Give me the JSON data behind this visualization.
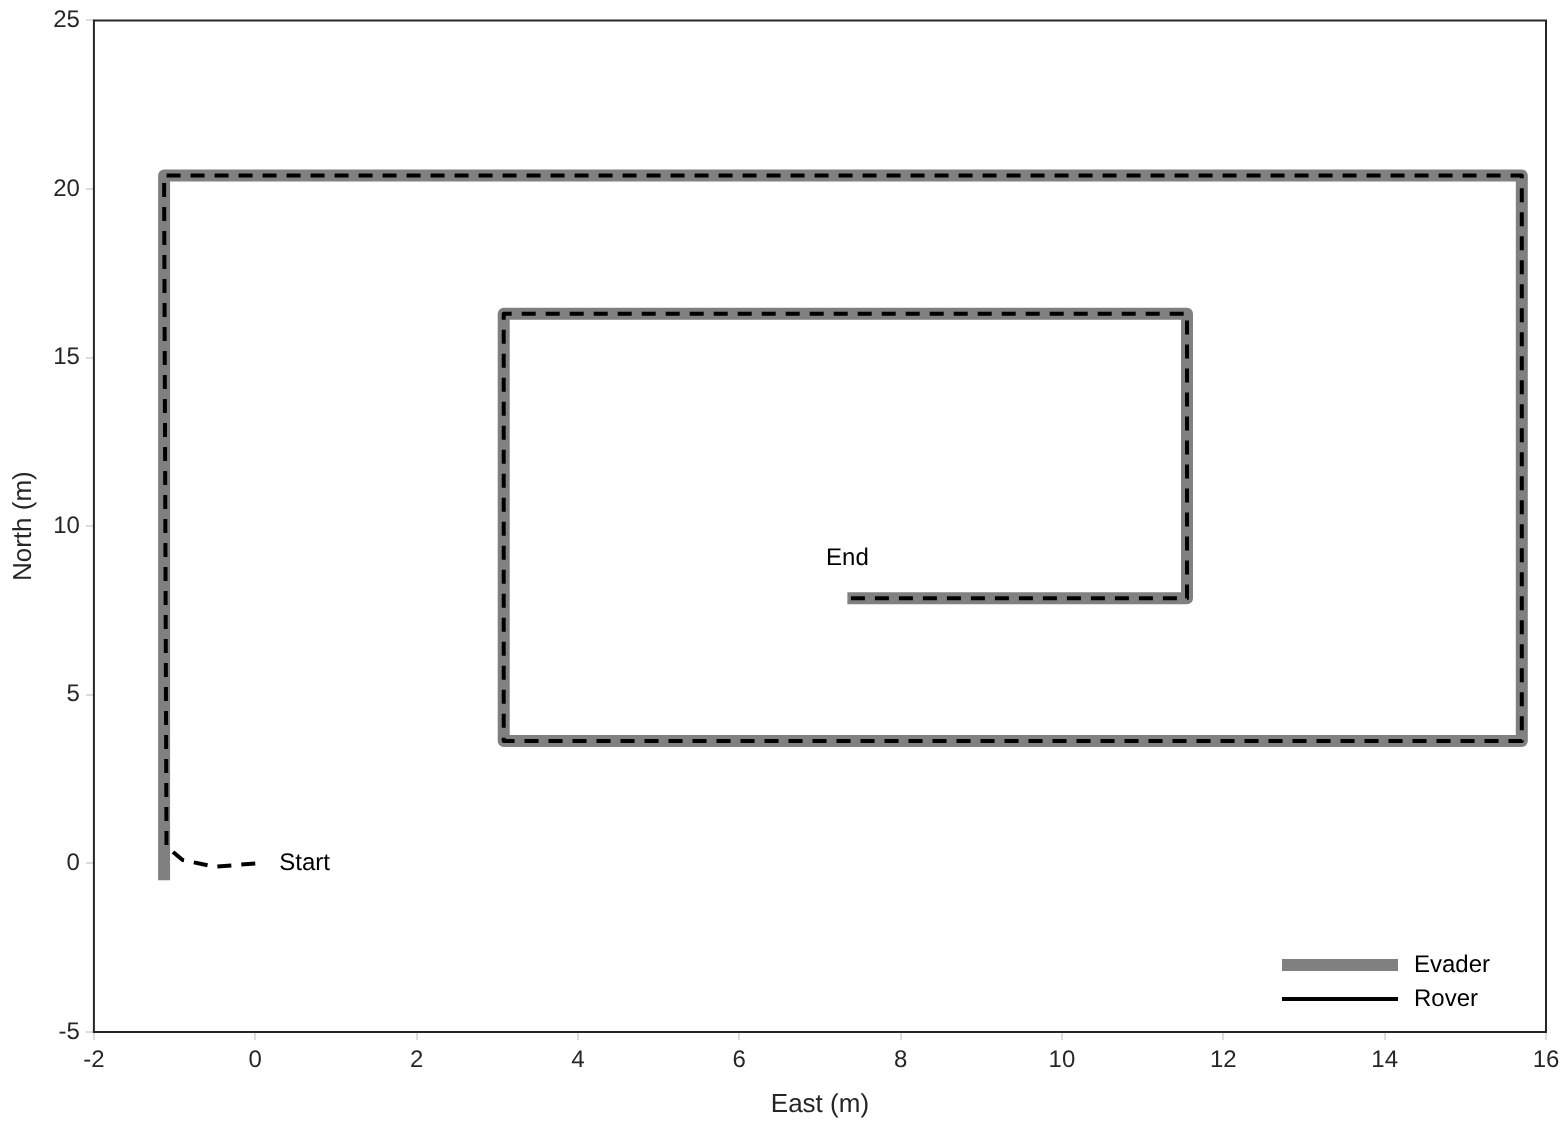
{
  "chart_data": {
    "type": "line",
    "xlabel": "East (m)",
    "ylabel": "North (m)",
    "xlim": [
      -2,
      16
    ],
    "xticks": [
      -2,
      0,
      2,
      4,
      6,
      8,
      10,
      12,
      14,
      16
    ],
    "ylim": [
      -5,
      25
    ],
    "yticks": [
      -5,
      0,
      5,
      10,
      15,
      20,
      25
    ],
    "grid": false,
    "legend": "bottom right",
    "marker": "none",
    "series": [
      {
        "name": "Evader",
        "color": "#808080",
        "line_style": "solid",
        "x": [
          -1.13,
          -1.13,
          15.7,
          15.7,
          3.08,
          3.08,
          11.55,
          11.55,
          7.34
        ],
        "values": [
          -0.5,
          20.4,
          20.4,
          3.63,
          3.63,
          16.3,
          16.3,
          7.86,
          7.86
        ]
      },
      {
        "name": "Rover",
        "color": "#000000",
        "line_style": "dashed",
        "x": [
          0,
          -0.5,
          -0.9,
          -1.1,
          -1.13,
          15.7,
          15.7,
          3.08,
          3.08,
          11.55,
          11.55,
          7.34
        ],
        "values": [
          0,
          -0.1,
          0.1,
          0.5,
          20.4,
          20.4,
          3.63,
          3.63,
          16.3,
          16.3,
          7.86,
          7.86
        ]
      }
    ],
    "annotations": [
      "Start",
      "End"
    ]
  }
}
